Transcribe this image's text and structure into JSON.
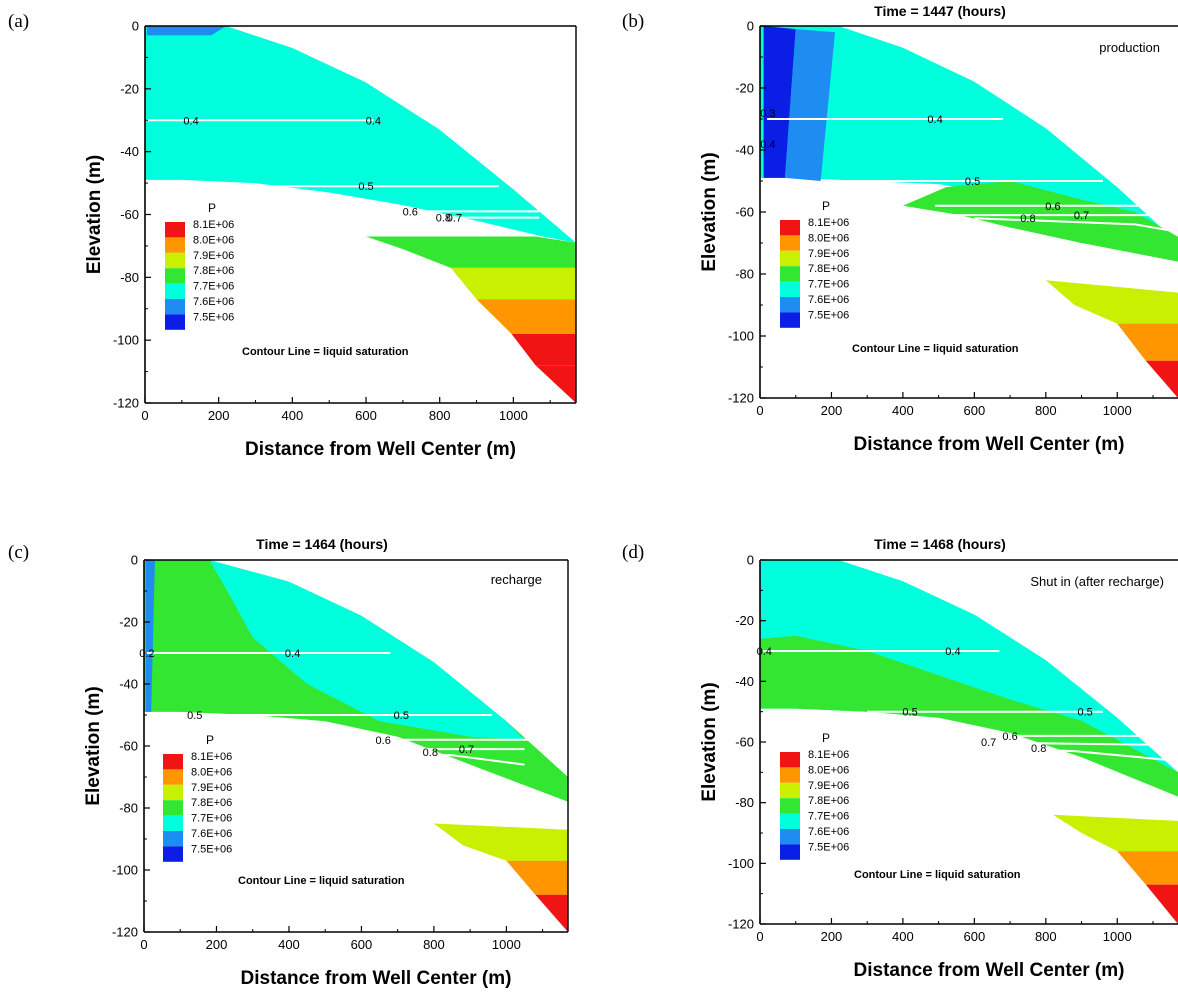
{
  "figure": {
    "levels": [
      7500000.0,
      7600000.0,
      7700000.0,
      7800000.0,
      7900000.0,
      8000000.0,
      8100000.0
    ],
    "colors": {
      "7.5E+06": "#0a1ee6",
      "7.6E+06": "#1e8cf0",
      "7.7E+06": "#00ffdc",
      "7.8E+06": "#32e632",
      "7.9E+06": "#c8f000",
      "8.0E+06": "#ff9600",
      "8.1E+06": "#f01414"
    }
  },
  "chart_data": [
    {
      "panel_label": "(a)",
      "type": "heatmap",
      "title": "",
      "annotation": "",
      "xlabel": "Distance from Well Center (m)",
      "ylabel": "Elevation (m)",
      "xlim": [
        0,
        1170
      ],
      "ylim": [
        -120,
        0
      ],
      "xticks": [
        "0",
        "200",
        "400",
        "600",
        "800",
        "1000"
      ],
      "yticks": [
        "0",
        "-20",
        "-40",
        "-60",
        "-80",
        "-100",
        "-120"
      ],
      "legend_title": "P",
      "legend_entries": [
        "8.1E+06",
        "8.0E+06",
        "7.9E+06",
        "7.8E+06",
        "7.7E+06",
        "7.6E+06",
        "7.5E+06"
      ],
      "legend_position": "lower-left",
      "caption": "Contour Line = liquid saturation",
      "contour_labels": [
        {
          "text": "0.4",
          "x": 125,
          "y": -30
        },
        {
          "text": "0.4",
          "x": 620,
          "y": -30
        },
        {
          "text": "0.5",
          "x": 600,
          "y": -51
        },
        {
          "text": "0.6",
          "x": 720,
          "y": -59
        },
        {
          "text": "0.8",
          "x": 810,
          "y": -61
        },
        {
          "text": "0.7",
          "x": 840,
          "y": -61
        }
      ]
    },
    {
      "panel_label": "(b)",
      "type": "heatmap",
      "title": "Time = 1447  (hours)",
      "annotation": "production",
      "xlabel": "Distance from Well Center (m)",
      "ylabel": "Elevation (m)",
      "xlim": [
        0,
        1170
      ],
      "ylim": [
        -120,
        0
      ],
      "xticks": [
        "0",
        "200",
        "400",
        "600",
        "800",
        "1000"
      ],
      "yticks": [
        "0",
        "-20",
        "-40",
        "-60",
        "-80",
        "-100",
        "-120"
      ],
      "legend_title": "P",
      "legend_entries": [
        "8.1E+06",
        "8.0E+06",
        "7.9E+06",
        "7.8E+06",
        "7.7E+06",
        "7.6E+06",
        "7.5E+06"
      ],
      "legend_position": "lower-left",
      "caption": "Contour Line = liquid saturation",
      "contour_labels": [
        {
          "text": "0.4",
          "x": 22,
          "y": -38
        },
        {
          "text": "0.3",
          "x": 22,
          "y": -28
        },
        {
          "text": "0.4",
          "x": 490,
          "y": -30
        },
        {
          "text": "0.5",
          "x": 595,
          "y": -50
        },
        {
          "text": "0.6",
          "x": 820,
          "y": -58
        },
        {
          "text": "0.7",
          "x": 900,
          "y": -61
        },
        {
          "text": "0.8",
          "x": 750,
          "y": -62
        }
      ]
    },
    {
      "panel_label": "(c)",
      "type": "heatmap",
      "title": "Time = 1464  (hours)",
      "annotation": "recharge",
      "xlabel": "Distance from Well Center (m)",
      "ylabel": "Elevation (m)",
      "xlim": [
        0,
        1170
      ],
      "ylim": [
        -120,
        0
      ],
      "xticks": [
        "0",
        "200",
        "400",
        "600",
        "800",
        "1000"
      ],
      "yticks": [
        "0",
        "-20",
        "-40",
        "-60",
        "-80",
        "-100",
        "-120"
      ],
      "legend_title": "P",
      "legend_entries": [
        "8.1E+06",
        "8.0E+06",
        "7.9E+06",
        "7.8E+06",
        "7.7E+06",
        "7.6E+06",
        "7.5E+06"
      ],
      "legend_position": "lower-left",
      "caption": "Contour Line = liquid saturation",
      "contour_labels": [
        {
          "text": "0.2",
          "x": 8,
          "y": -30
        },
        {
          "text": "0.4",
          "x": 410,
          "y": -30
        },
        {
          "text": "0.5",
          "x": 140,
          "y": -50
        },
        {
          "text": "0.5",
          "x": 710,
          "y": -50
        },
        {
          "text": "0.6",
          "x": 660,
          "y": -58
        },
        {
          "text": "0.7",
          "x": 890,
          "y": -61
        },
        {
          "text": "0.8",
          "x": 790,
          "y": -62
        }
      ]
    },
    {
      "panel_label": "(d)",
      "type": "heatmap",
      "title": "Time = 1468  (hours)",
      "annotation": "Shut in (after recharge)",
      "xlabel": "Distance from Well Center (m)",
      "ylabel": "Elevation (m)",
      "xlim": [
        0,
        1170
      ],
      "ylim": [
        -120,
        0
      ],
      "xticks": [
        "0",
        "200",
        "400",
        "600",
        "800",
        "1000"
      ],
      "yticks": [
        "0",
        "-20",
        "-40",
        "-60",
        "-80",
        "-100",
        "-120"
      ],
      "legend_title": "P",
      "legend_entries": [
        "8.1E+06",
        "8.0E+06",
        "7.9E+06",
        "7.8E+06",
        "7.7E+06",
        "7.6E+06",
        "7.5E+06"
      ],
      "legend_position": "lower-left",
      "caption": "Contour Line = liquid saturation",
      "contour_labels": [
        {
          "text": "0.4",
          "x": 12,
          "y": -30
        },
        {
          "text": "0.4",
          "x": 540,
          "y": -30
        },
        {
          "text": "0.5",
          "x": 420,
          "y": -50
        },
        {
          "text": "0.5",
          "x": 910,
          "y": -50
        },
        {
          "text": "0.6",
          "x": 700,
          "y": -58
        },
        {
          "text": "0.7",
          "x": 640,
          "y": -60
        },
        {
          "text": "0.8",
          "x": 780,
          "y": -62
        }
      ]
    }
  ]
}
